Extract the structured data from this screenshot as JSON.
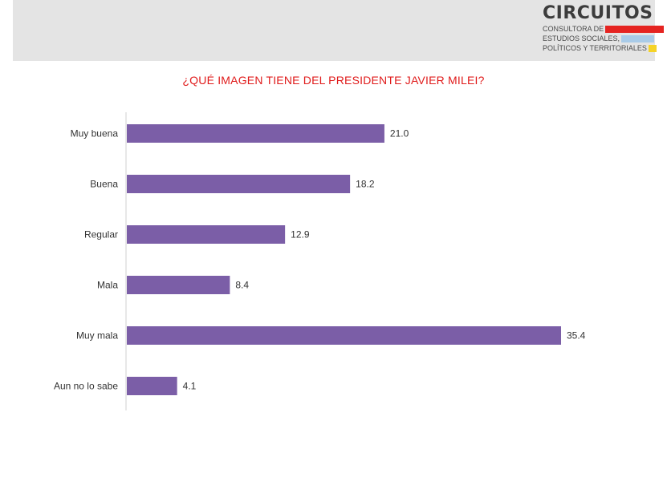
{
  "logo": {
    "name": "CIRCUITOS",
    "line1": "CONSULTORA DE",
    "line2": "ESTUDIOS SOCIALES,",
    "line3": "POLÍTICOS Y TERRITORIALES",
    "colors": [
      "#e52421",
      "#a9cbe8",
      "#f5d327"
    ]
  },
  "colors": {
    "bar": "#7b5ea7",
    "title": "#e01b1b",
    "header_band": "#e4e4e4"
  },
  "chart_data": {
    "type": "bar",
    "orientation": "horizontal",
    "title": "¿QUÉ IMAGEN TIENE DEL PRESIDENTE JAVIER MILEI?",
    "categories": [
      "Muy buena",
      "Buena",
      "Regular",
      "Mala",
      "Muy mala",
      "Aun no lo sabe"
    ],
    "value_labels": [
      "21.0",
      "18.2",
      "12.9",
      "8.4",
      "35.4",
      "4.1"
    ],
    "values": [
      21.0,
      18.2,
      12.9,
      8.4,
      35.4,
      4.1
    ],
    "xlim": [
      0,
      35.4
    ],
    "grid": false,
    "legend": "none"
  }
}
